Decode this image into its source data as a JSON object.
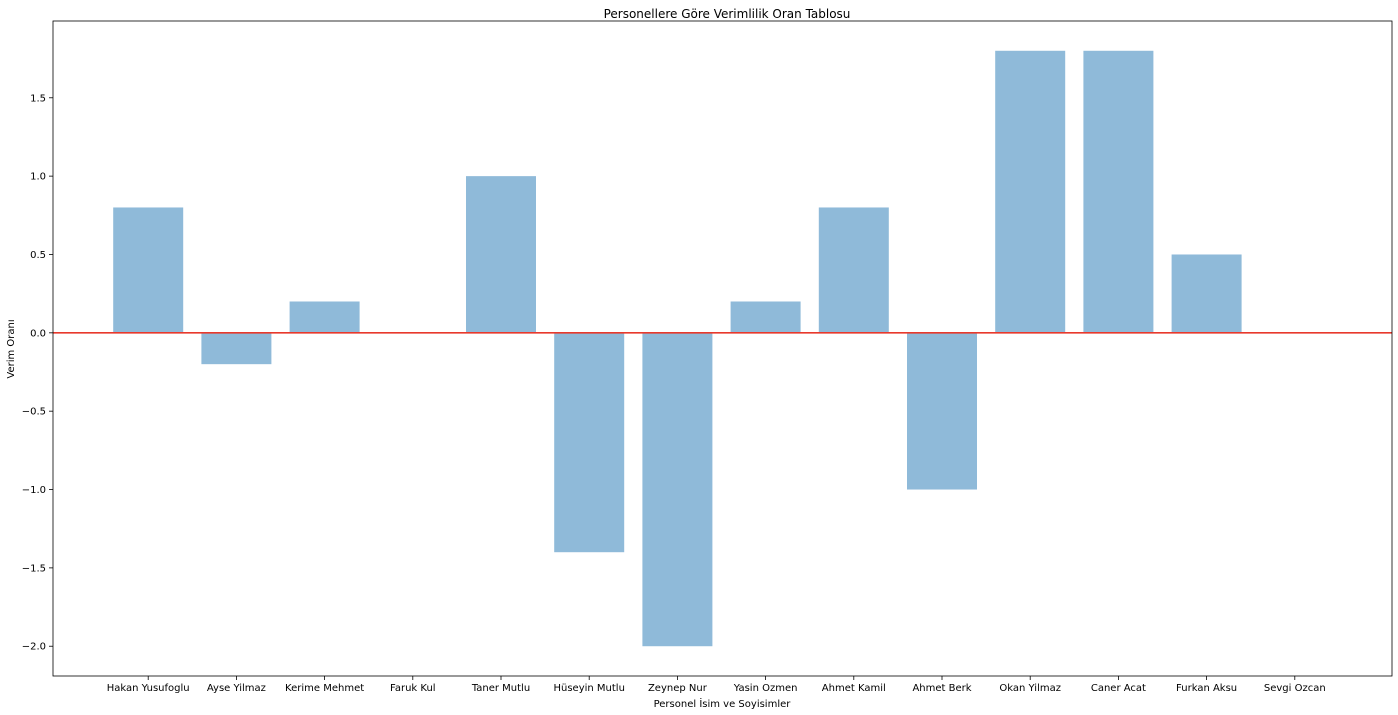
{
  "chart_data": {
    "type": "bar",
    "title": "Personellere Göre Verimlilik Oran Tablosu",
    "xlabel": "Personel İsim ve Soyisimler",
    "ylabel": "Verim Oranı",
    "categories": [
      "Hakan Yusufoglu",
      "Ayse Yilmaz",
      "Kerime Mehmet",
      "Faruk Kul",
      "Taner Mutlu",
      "Hüseyin Mutlu",
      "Zeynep Nur",
      "Yasin Ozmen",
      "Ahmet Kamil",
      "Ahmet Berk",
      "Okan Yilmaz",
      "Caner Acat",
      "Furkan Aksu",
      "Sevgi Ozcan"
    ],
    "values": [
      0.8,
      -0.2,
      0.2,
      0.0,
      1.0,
      -1.4,
      -2.0,
      0.2,
      0.8,
      -1.0,
      1.8,
      1.8,
      0.5,
      0.0
    ],
    "yticks": [
      -2.0,
      -1.5,
      -1.0,
      -0.5,
      0.0,
      0.5,
      1.0,
      1.5
    ],
    "ytick_labels": [
      "−2.0",
      "−1.5",
      "−1.0",
      "−0.5",
      "0.0",
      "0.5",
      "1.0",
      "1.5"
    ],
    "ylim": [
      -2.19,
      1.99
    ],
    "grid": false,
    "reference_line": {
      "y": 0,
      "color": "#e8392c"
    },
    "bar_color": "#8fbad9"
  }
}
